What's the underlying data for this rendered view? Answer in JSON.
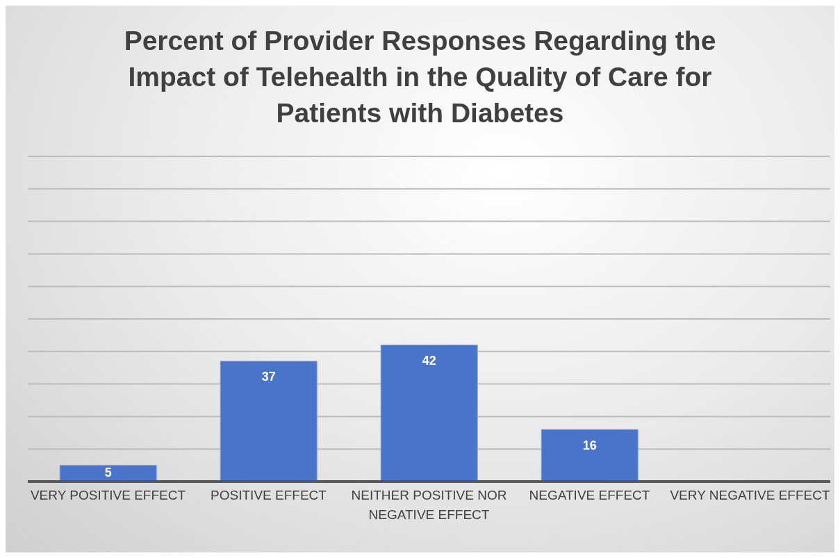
{
  "chart_data": {
    "type": "bar",
    "title": "Percent of Provider Responses Regarding the Impact of Telehealth in the Quality of Care for Patients with Diabetes",
    "categories": [
      "VERY POSITIVE EFFECT",
      "POSITIVE EFFECT",
      "NEITHER POSITIVE NOR NEGATIVE EFFECT",
      "NEGATIVE EFFECT",
      "VERY NEGATIVE EFFECT"
    ],
    "values": [
      5,
      37,
      42,
      16,
      0
    ],
    "value_labels": [
      "5",
      "37",
      "42",
      "16",
      null
    ],
    "color": "#4a74c9",
    "ylim": [
      0,
      100
    ],
    "yticks": [
      {
        "value": 0,
        "label": null
      },
      {
        "value": 10,
        "label": null
      },
      {
        "value": 20,
        "label": null
      },
      {
        "value": 30,
        "label": null
      },
      {
        "value": 40,
        "label": null
      },
      {
        "value": 50,
        "label": null
      },
      {
        "value": 60,
        "label": null
      },
      {
        "value": 70,
        "label": null
      },
      {
        "value": 80,
        "label": null
      },
      {
        "value": 90,
        "label": null
      },
      {
        "value": 100,
        "label": null
      }
    ],
    "grid": "y",
    "tick_labels": "x"
  }
}
